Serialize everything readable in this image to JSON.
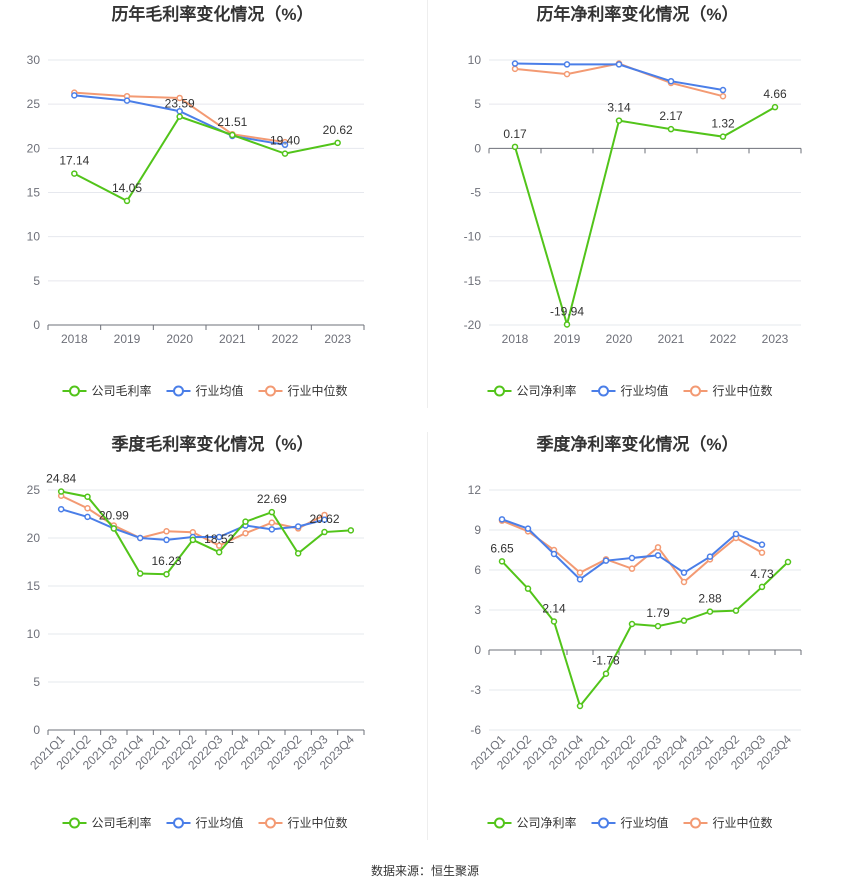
{
  "source_text": "数据来源：恒生聚源",
  "colors": {
    "company": "#52c41a",
    "avg": "#4a7ee8",
    "median": "#f39a73"
  },
  "chart_data": [
    {
      "id": "c1",
      "type": "line",
      "title": "历年毛利率变化情况（%）",
      "categories": [
        "2018",
        "2019",
        "2020",
        "2021",
        "2022",
        "2023"
      ],
      "ylim": [
        0,
        30
      ],
      "yticks": [
        0,
        5,
        10,
        15,
        20,
        25,
        30
      ],
      "series": [
        {
          "name": "公司毛利率",
          "key": "company",
          "values": [
            17.14,
            14.05,
            23.59,
            21.51,
            19.4,
            20.62
          ],
          "labels": [
            "17.14",
            "14.05",
            "23.59",
            "21.51",
            "19.40",
            "20.62"
          ]
        },
        {
          "name": "行业均值",
          "key": "avg",
          "values": [
            26.0,
            25.4,
            24.2,
            21.4,
            20.4,
            null
          ]
        },
        {
          "name": "行业中位数",
          "key": "median",
          "values": [
            26.3,
            25.9,
            25.7,
            21.6,
            20.7,
            null
          ]
        }
      ],
      "label_pos": [
        "up",
        "up",
        "up",
        "up",
        "up",
        "up"
      ]
    },
    {
      "id": "c2",
      "type": "line",
      "title": "历年净利率变化情况（%）",
      "categories": [
        "2018",
        "2019",
        "2020",
        "2021",
        "2022",
        "2023"
      ],
      "ylim": [
        -20,
        10
      ],
      "yticks": [
        -20,
        -15,
        -10,
        -5,
        0,
        5,
        10
      ],
      "series": [
        {
          "name": "公司净利率",
          "key": "company",
          "values": [
            0.17,
            -19.94,
            3.14,
            2.17,
            1.32,
            4.66
          ],
          "labels": [
            "0.17",
            "-19.94",
            "3.14",
            "2.17",
            "1.32",
            "4.66"
          ]
        },
        {
          "name": "行业均值",
          "key": "avg",
          "values": [
            9.6,
            9.5,
            9.5,
            7.6,
            6.6,
            null
          ]
        },
        {
          "name": "行业中位数",
          "key": "median",
          "values": [
            9.0,
            8.4,
            9.6,
            7.4,
            5.9,
            null
          ]
        }
      ],
      "label_pos": [
        "up",
        "up",
        "up",
        "up",
        "up",
        "up"
      ]
    },
    {
      "id": "c3",
      "type": "line",
      "title": "季度毛利率变化情况（%）",
      "categories": [
        "2021Q1",
        "2021Q2",
        "2021Q3",
        "2021Q4",
        "2022Q1",
        "2022Q2",
        "2022Q3",
        "2022Q4",
        "2023Q1",
        "2023Q2",
        "2023Q3",
        "2023Q4"
      ],
      "ylim": [
        0,
        25
      ],
      "yticks": [
        0,
        5,
        10,
        15,
        20,
        25
      ],
      "series": [
        {
          "name": "公司毛利率",
          "key": "company",
          "values": [
            24.84,
            24.3,
            20.99,
            16.3,
            16.23,
            19.8,
            18.52,
            21.7,
            22.69,
            18.4,
            20.62,
            20.8
          ],
          "labels": [
            "24.84",
            "",
            "20.99",
            "",
            "16.23",
            "",
            "18.52",
            "",
            "22.69",
            "",
            "20.62",
            ""
          ]
        },
        {
          "name": "行业均值",
          "key": "avg",
          "values": [
            23.0,
            22.2,
            21.0,
            20.0,
            19.8,
            20.1,
            20.1,
            21.3,
            20.9,
            21.2,
            21.9,
            null
          ]
        },
        {
          "name": "行业中位数",
          "key": "median",
          "values": [
            24.4,
            23.1,
            21.3,
            20.0,
            20.7,
            20.6,
            19.2,
            20.5,
            21.6,
            21.0,
            22.4,
            null
          ]
        }
      ],
      "label_pos": [
        "up",
        "up",
        "up",
        "up",
        "up",
        "up",
        "up",
        "up",
        "up",
        "up",
        "up",
        "up"
      ]
    },
    {
      "id": "c4",
      "type": "line",
      "title": "季度净利率变化情况（%）",
      "categories": [
        "2021Q1",
        "2021Q2",
        "2021Q3",
        "2021Q4",
        "2022Q1",
        "2022Q2",
        "2022Q3",
        "2022Q4",
        "2023Q1",
        "2023Q2",
        "2023Q3",
        "2023Q4"
      ],
      "ylim": [
        -6,
        12
      ],
      "yticks": [
        -6,
        -3,
        0,
        3,
        6,
        9,
        12
      ],
      "series": [
        {
          "name": "公司净利率",
          "key": "company",
          "values": [
            6.65,
            4.6,
            2.14,
            -4.2,
            -1.78,
            1.95,
            1.79,
            2.2,
            2.88,
            2.95,
            4.73,
            6.6
          ],
          "labels": [
            "6.65",
            "",
            "2.14",
            "",
            "-1.78",
            "",
            "1.79",
            "",
            "2.88",
            "",
            "4.73",
            ""
          ]
        },
        {
          "name": "行业均值",
          "key": "avg",
          "values": [
            9.8,
            9.1,
            7.2,
            5.3,
            6.7,
            6.9,
            7.1,
            5.8,
            7.0,
            8.7,
            7.9,
            null
          ]
        },
        {
          "name": "行业中位数",
          "key": "median",
          "values": [
            9.7,
            8.9,
            7.5,
            5.8,
            6.8,
            6.1,
            7.7,
            5.1,
            6.8,
            8.4,
            7.3,
            null
          ]
        }
      ],
      "label_pos": [
        "up",
        "up",
        "up",
        "up",
        "up",
        "up",
        "up",
        "up",
        "up",
        "up",
        "up",
        "up"
      ]
    }
  ]
}
